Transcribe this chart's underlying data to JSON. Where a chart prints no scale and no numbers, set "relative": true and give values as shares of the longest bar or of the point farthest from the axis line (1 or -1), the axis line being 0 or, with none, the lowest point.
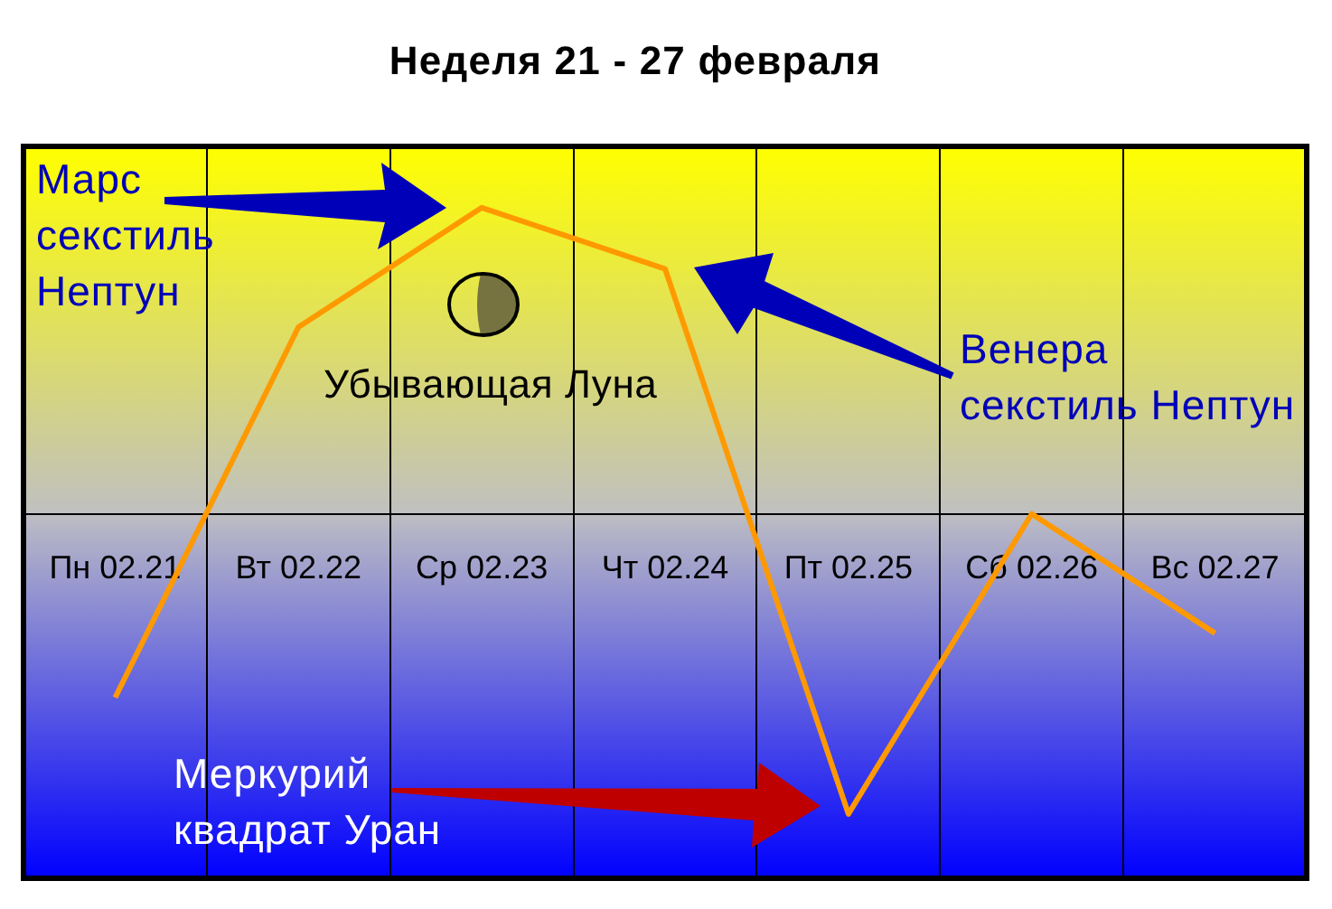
{
  "chart_data": {
    "type": "line",
    "title": "Неделя 21 - 27 февраля",
    "categories": [
      "Пн 02.21",
      "Вт 02.22",
      "Ср 02.23",
      "Чт 02.24",
      "Пт 02.25",
      "Сб 02.26",
      "Вс 02.27"
    ],
    "values": [
      -0.6,
      0.61,
      1,
      0.8,
      -0.98,
      0,
      -0.39
    ],
    "color": "#ff9900",
    "relative": true,
    "grid": "x",
    "annotations": [
      "Марс\nсекстиль\nНептун",
      "Убывающая Луна",
      "Венера\nсекстиль Нептун",
      "Меркурий\nквадрат Уран"
    ]
  }
}
